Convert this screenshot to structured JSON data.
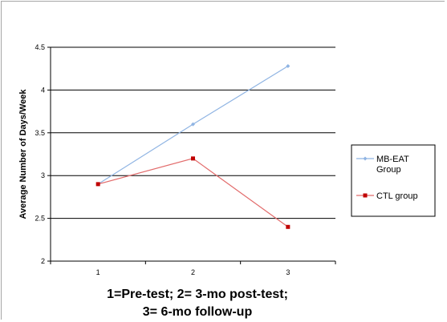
{
  "chart_data": {
    "type": "line",
    "x": [
      1,
      2,
      3
    ],
    "xticks": [
      "1",
      "2",
      "3"
    ],
    "yticks": [
      "2",
      "2.5",
      "3",
      "3.5",
      "4",
      "4.5"
    ],
    "ylim": [
      2,
      4.5
    ],
    "ylabel": "Average Number of Days/Week",
    "xlabel_lines": [
      "1=Pre-test; 2= 3-mo post-test;",
      "3= 6-mo follow-up"
    ],
    "grid": "horizontal",
    "legend_position": "right",
    "series": [
      {
        "name": "MB-EAT Group",
        "name_lines": [
          "MB-EAT",
          "Group"
        ],
        "color": "#8fb4e3",
        "marker": "diamond",
        "values": [
          2.9,
          3.6,
          4.28
        ]
      },
      {
        "name": "CTL group",
        "name_lines": [
          "CTL group"
        ],
        "color": "#e26b6b",
        "marker_color": "#c00000",
        "marker": "square",
        "values": [
          2.9,
          3.2,
          2.4
        ]
      }
    ]
  }
}
